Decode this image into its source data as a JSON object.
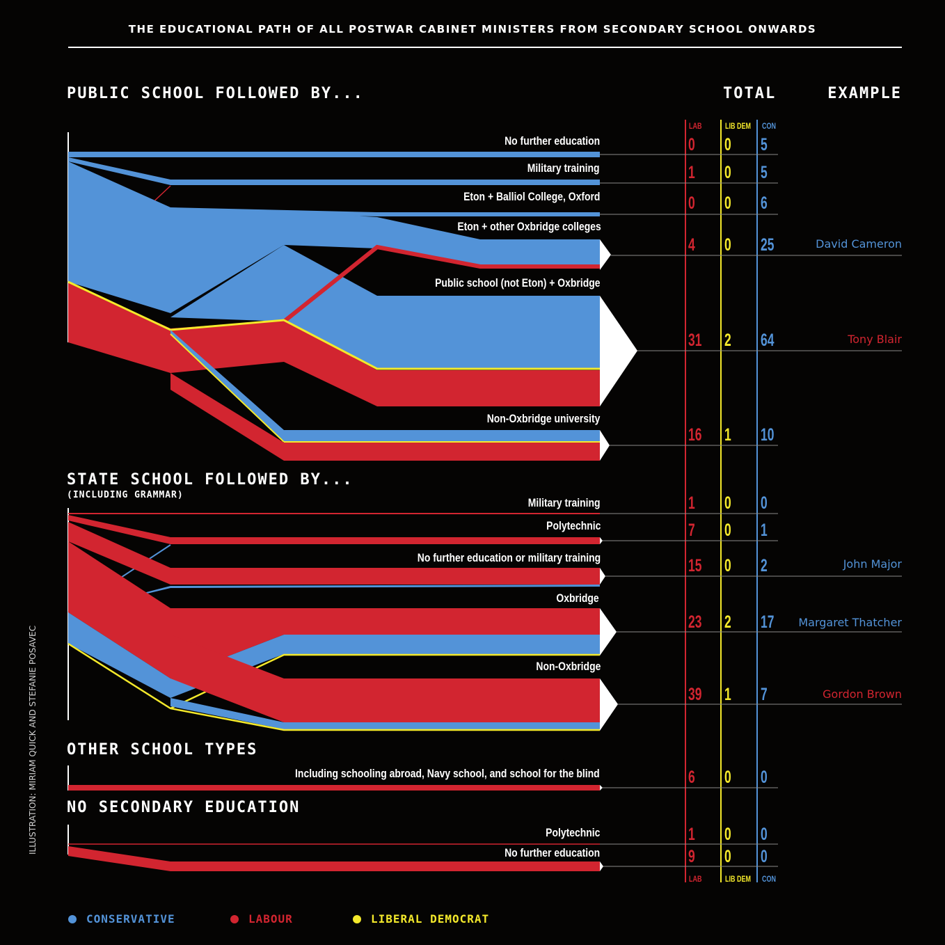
{
  "title": "THE EDUCATIONAL PATH OF ALL POSTWAR CABINET MINISTERS FROM SECONDARY SCHOOL ONWARDS",
  "colors": {
    "con": "#5393d8",
    "lab": "#d22530",
    "libdem": "#f4e92b",
    "bg": "#050403"
  },
  "headers": {
    "total": "TOTAL",
    "example": "EXAMPLE"
  },
  "columns": {
    "lab": "LAB",
    "libdem": "LIB DEM",
    "con": "CON"
  },
  "credit": "ILLUSTRATION: MIRIAM QUICK AND STEFANIE POSAVEC",
  "legend": [
    {
      "label": "CONSERVATIVE",
      "color": "#5393d8"
    },
    {
      "label": "LABOUR",
      "color": "#d22530"
    },
    {
      "label": "LIBERAL DEMOCRAT",
      "color": "#f4e92b"
    }
  ],
  "sections": [
    {
      "heading": "PUBLIC SCHOOL FOLLOWED BY...",
      "subheading": "",
      "rows": [
        {
          "label": "No further education",
          "lab": 0,
          "libdem": 0,
          "con": 5,
          "example": ""
        },
        {
          "label": "Military training",
          "lab": 1,
          "libdem": 0,
          "con": 5,
          "example": ""
        },
        {
          "label": "Eton + Balliol College, Oxford",
          "lab": 0,
          "libdem": 0,
          "con": 6,
          "example": ""
        },
        {
          "label": "Eton + other Oxbridge colleges",
          "lab": 4,
          "libdem": 0,
          "con": 25,
          "example": "David Cameron",
          "example_party": "con"
        },
        {
          "label": "Public school (not Eton) + Oxbridge",
          "lab": 31,
          "libdem": 2,
          "con": 64,
          "example": "Tony Blair",
          "example_party": "lab"
        },
        {
          "label": "Non-Oxbridge university",
          "lab": 16,
          "libdem": 1,
          "con": 10,
          "example": ""
        }
      ]
    },
    {
      "heading": "STATE SCHOOL FOLLOWED BY...",
      "subheading": "(INCLUDING GRAMMAR)",
      "rows": [
        {
          "label": "Military training",
          "lab": 1,
          "libdem": 0,
          "con": 0,
          "example": ""
        },
        {
          "label": "Polytechnic",
          "lab": 7,
          "libdem": 0,
          "con": 1,
          "example": ""
        },
        {
          "label": "No further education or military training",
          "lab": 15,
          "libdem": 0,
          "con": 2,
          "example": "John Major",
          "example_party": "con"
        },
        {
          "label": "Oxbridge",
          "lab": 23,
          "libdem": 2,
          "con": 17,
          "example": "Margaret Thatcher",
          "example_party": "con"
        },
        {
          "label": "Non-Oxbridge",
          "lab": 39,
          "libdem": 1,
          "con": 7,
          "example": "Gordon Brown",
          "example_party": "lab"
        }
      ]
    },
    {
      "heading": "OTHER SCHOOL TYPES",
      "subheading": "",
      "rows": [
        {
          "label": "Including schooling abroad, Navy school, and school for the blind",
          "lab": 6,
          "libdem": 0,
          "con": 0,
          "example": ""
        }
      ]
    },
    {
      "heading": "NO SECONDARY EDUCATION",
      "subheading": "",
      "rows": [
        {
          "label": "Polytechnic",
          "lab": 1,
          "libdem": 0,
          "con": 0,
          "example": ""
        },
        {
          "label": "No further education",
          "lab": 9,
          "libdem": 0,
          "con": 0,
          "example": ""
        }
      ]
    }
  ]
}
